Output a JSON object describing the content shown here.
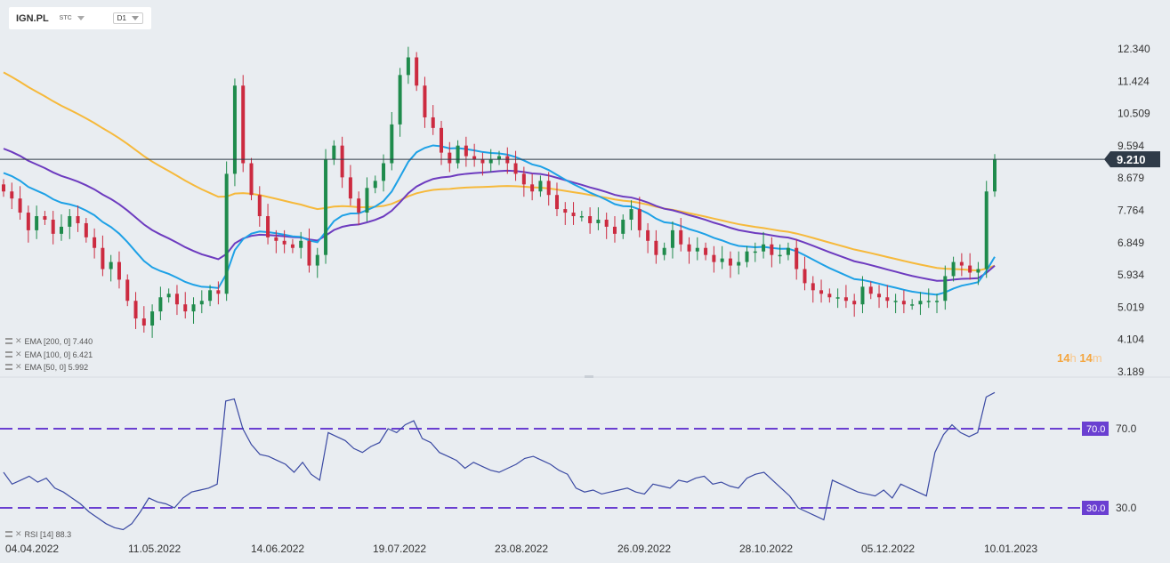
{
  "header": {
    "symbol": "IGN.PL",
    "exchange": "STC",
    "timeframe": "D1"
  },
  "price_axis": {
    "ticks": [
      "12.340",
      "11.424",
      "10.509",
      "9.594",
      "8.679",
      "7.764",
      "6.849",
      "5.934",
      "5.019",
      "4.104",
      "3.189"
    ]
  },
  "current_price": {
    "label": "9.210",
    "value": 9.21,
    "color": "#2f3b48"
  },
  "indicators": {
    "ema200": "EMA [200, 0] 7.440",
    "ema100": "EMA [100, 0] 6.421",
    "ema50": "EMA [50, 0] 5.992",
    "rsi": "RSI [14] 88.3"
  },
  "rsi_levels": {
    "upper": "70.0",
    "lower": "30.0"
  },
  "dates": [
    "04.04.2022",
    "11.05.2022",
    "14.06.2022",
    "19.07.2022",
    "23.08.2022",
    "26.09.2022",
    "28.10.2022",
    "05.12.2022",
    "10.01.2023"
  ],
  "countdown": {
    "hours": "14",
    "h": "h",
    "minutes": "14",
    "m": "m"
  },
  "colors": {
    "up": "#1f8b4c",
    "down": "#cc2b40",
    "ema200": "#f6b93b",
    "ema100": "#6d3bbf",
    "ema50": "#1ea1e6",
    "rsi": "#3b4aa3",
    "levels": "#6a3fd1"
  },
  "chart_data": {
    "type": "candlestick",
    "title": "IGN.PL D1",
    "ylim": [
      3.189,
      12.34
    ],
    "candles_close": [
      8.3,
      8.1,
      7.7,
      7.2,
      7.6,
      7.5,
      7.1,
      7.3,
      7.6,
      7.4,
      7.0,
      6.7,
      6.1,
      6.3,
      5.8,
      5.2,
      4.7,
      4.5,
      4.9,
      5.3,
      5.4,
      5.1,
      4.9,
      5.1,
      5.2,
      5.5,
      5.4,
      8.8,
      11.3,
      9.1,
      8.2,
      7.6,
      7.0,
      6.9,
      6.8,
      6.7,
      6.9,
      6.2,
      6.5,
      9.2,
      9.6,
      8.7,
      8.1,
      7.7,
      8.4,
      8.6,
      9.1,
      10.2,
      11.6,
      12.1,
      11.3,
      10.4,
      10.1,
      9.4,
      9.1,
      9.6,
      9.3,
      9.2,
      9.1,
      9.2,
      9.3,
      9.1,
      8.8,
      8.5,
      8.3,
      8.6,
      8.2,
      7.8,
      7.7,
      7.6,
      7.6,
      7.4,
      7.5,
      7.3,
      7.1,
      7.5,
      7.8,
      7.2,
      6.9,
      6.5,
      6.7,
      7.2,
      6.8,
      6.6,
      6.7,
      6.5,
      6.3,
      6.4,
      6.2,
      6.3,
      6.6,
      6.6,
      6.8,
      6.5,
      6.5,
      6.7,
      6.1,
      5.7,
      5.5,
      5.4,
      5.3,
      5.3,
      5.2,
      5.1,
      5.6,
      5.4,
      5.3,
      5.2,
      5.2,
      5.1,
      5.1,
      5.2,
      5.2,
      5.2,
      5.9,
      6.3,
      6.2,
      6.0,
      6.1,
      8.3,
      9.21
    ],
    "ema200_end": 7.44,
    "ema100_end": 6.421,
    "ema50_end": 5.992,
    "rsi": {
      "levels": [
        30,
        70
      ],
      "values": [
        48,
        42,
        44,
        46,
        43,
        45,
        40,
        38,
        35,
        32,
        28,
        25,
        22,
        20,
        19,
        22,
        28,
        35,
        33,
        32,
        30,
        35,
        38,
        39,
        40,
        42,
        84,
        85,
        70,
        62,
        57,
        56,
        54,
        52,
        48,
        53,
        47,
        44,
        68,
        66,
        64,
        60,
        58,
        61,
        63,
        70,
        68,
        72,
        74,
        65,
        63,
        58,
        56,
        54,
        50,
        53,
        51,
        49,
        48,
        50,
        52,
        55,
        56,
        54,
        52,
        49,
        47,
        40,
        38,
        39,
        37,
        38,
        39,
        40,
        38,
        37,
        42,
        41,
        40,
        44,
        43,
        45,
        46,
        42,
        43,
        41,
        40,
        45,
        47,
        48,
        44,
        40,
        36,
        30,
        28,
        26,
        24,
        44,
        42,
        40,
        38,
        37,
        36,
        39,
        35,
        42,
        40,
        38,
        36,
        58,
        67,
        72,
        68,
        66,
        68,
        86,
        88.3
      ]
    }
  }
}
